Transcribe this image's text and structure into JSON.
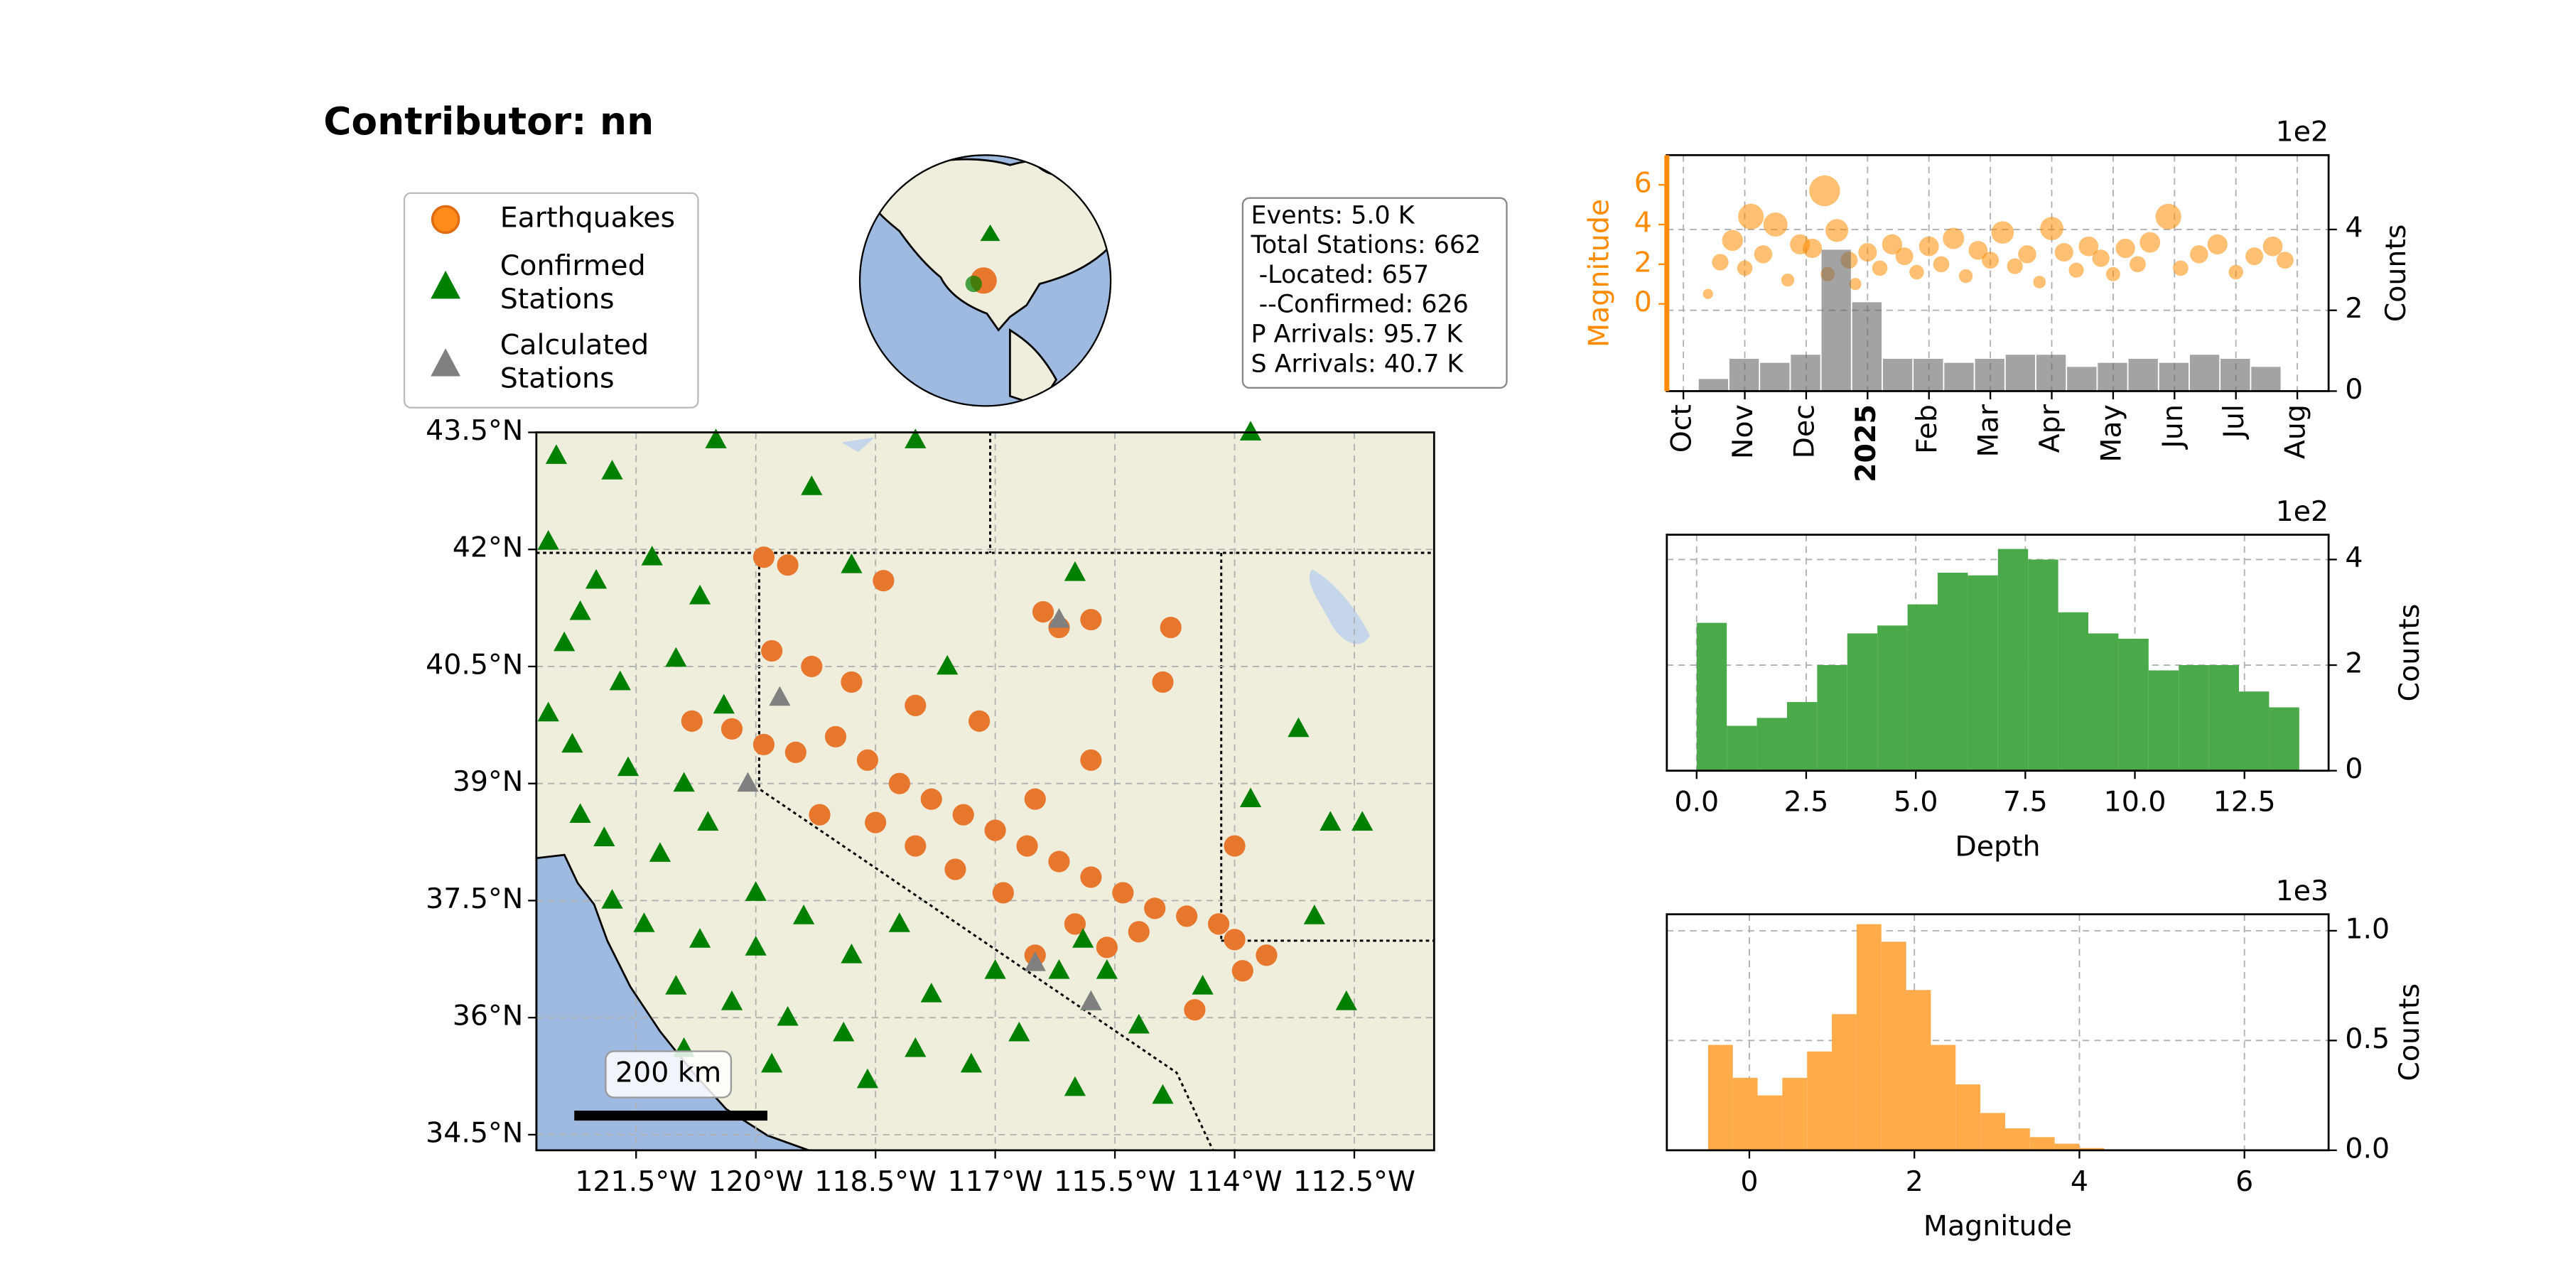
{
  "title": "Contributor: nn",
  "info_box": [
    "Events: 5.0 K",
    "Total Stations: 662",
    " -Located: 657",
    " --Confirmed: 626",
    "P Arrivals: 95.7 K",
    "S Arrivals: 40.7 K"
  ],
  "chart_data": [
    {
      "type": "map",
      "xlim": [
        -122.75,
        -111.5
      ],
      "ylim": [
        34.3,
        43.5
      ],
      "xticks": [
        {
          "value": -121.5,
          "label": "121.5°W"
        },
        {
          "value": -120,
          "label": "120°W"
        },
        {
          "value": -118.5,
          "label": "118.5°W"
        },
        {
          "value": -117,
          "label": "117°W"
        },
        {
          "value": -115.5,
          "label": "115.5°W"
        },
        {
          "value": -114,
          "label": "114°W"
        },
        {
          "value": -112.5,
          "label": "112.5°W"
        }
      ],
      "yticks": [
        {
          "value": 43.5,
          "label": "43.5°N"
        },
        {
          "value": 42,
          "label": "42°N"
        },
        {
          "value": 40.5,
          "label": "40.5°N"
        },
        {
          "value": 39,
          "label": "39°N"
        },
        {
          "value": 37.5,
          "label": "37.5°N"
        },
        {
          "value": 36,
          "label": "36°N"
        },
        {
          "value": 34.5,
          "label": "34.5°N"
        }
      ],
      "grid": true,
      "scale_bar_label": "200 km",
      "series": [
        {
          "name": "Earthquakes",
          "color": "#e8772e",
          "marker": "circle",
          "x": [
            -119.9,
            -119.6,
            -118.4,
            -119.8,
            -119.3,
            -118.8,
            -120.8,
            -120.3,
            -119.9,
            -119.5,
            -119.0,
            -118.6,
            -118.2,
            -117.8,
            -117.4,
            -117.0,
            -116.6,
            -116.2,
            -115.8,
            -115.4,
            -115.0,
            -114.6,
            -114.2,
            -116.9,
            -117.5,
            -118.0,
            -116.0,
            -115.6,
            -115.2,
            -116.5,
            -114.0,
            -114.0,
            -113.6,
            -113.9,
            -114.5,
            -116.2,
            -115.8,
            -116.4,
            -114.8,
            -114.9,
            -116.5,
            -115.8,
            -117.2,
            -118.0,
            -119.2,
            -118.5
          ],
          "values": [
            41.9,
            41.8,
            41.6,
            40.7,
            40.5,
            40.3,
            39.8,
            39.7,
            39.5,
            39.4,
            39.6,
            39.3,
            39.0,
            38.8,
            38.6,
            38.4,
            38.2,
            38.0,
            37.8,
            37.6,
            37.4,
            37.3,
            37.2,
            37.6,
            37.9,
            38.2,
            37.2,
            36.9,
            37.1,
            36.8,
            37.0,
            38.2,
            36.8,
            36.6,
            36.1,
            41.0,
            41.1,
            41.2,
            41.0,
            40.3,
            38.8,
            39.3,
            39.8,
            40.0,
            38.6,
            38.5
          ]
        },
        {
          "name": "Confirmed Stations",
          "color": "#008000",
          "marker": "triangle",
          "x": [
            -122.5,
            -121.8,
            -120.5,
            -119.3,
            -118.0,
            -113.8,
            -122.6,
            -122.0,
            -121.3,
            -120.7,
            -122.4,
            -121.7,
            -121.0,
            -120.4,
            -122.3,
            -121.6,
            -120.9,
            -122.2,
            -121.9,
            -121.2,
            -120.6,
            -121.8,
            -121.4,
            -120.7,
            -120.0,
            -119.4,
            -121.0,
            -120.3,
            -119.6,
            -118.9,
            -119.8,
            -118.6,
            -118.0,
            -117.3,
            -116.7,
            -116.0,
            -117.8,
            -117.0,
            -116.2,
            -115.9,
            -115.6,
            -115.2,
            -114.9,
            -118.8,
            -118.2,
            -117.6,
            -116.0,
            -113.2,
            -112.8,
            -113.0,
            -112.6,
            -112.4,
            -113.8,
            -114.4,
            -115.8,
            -120.0,
            -120.9,
            -122.6,
            -122.2,
            -118.8
          ],
          "values": [
            43.2,
            43.0,
            43.4,
            42.8,
            43.4,
            43.5,
            42.1,
            41.6,
            41.9,
            41.4,
            40.8,
            40.3,
            40.6,
            40.0,
            39.5,
            39.2,
            39.0,
            38.6,
            38.3,
            38.1,
            38.5,
            37.5,
            37.2,
            37.0,
            37.6,
            37.3,
            36.4,
            36.2,
            36.0,
            35.8,
            35.4,
            35.2,
            35.6,
            35.4,
            35.8,
            35.1,
            36.3,
            36.6,
            36.6,
            37.0,
            36.6,
            35.9,
            35.0,
            36.8,
            37.2,
            40.5,
            41.7,
            39.7,
            38.5,
            37.3,
            36.2,
            38.5,
            38.8,
            36.4,
            36.2,
            36.9,
            35.6,
            39.9,
            41.2,
            41.8
          ]
        },
        {
          "name": "Calculated Stations",
          "color": "#808080",
          "marker": "triangle",
          "x": [
            -116.2,
            -120.1,
            -116.5,
            -115.8,
            -119.7
          ],
          "values": [
            41.1,
            39.0,
            36.7,
            36.2,
            40.1
          ]
        }
      ]
    },
    {
      "type": "timeline",
      "xlim": [
        -0.27,
        10.51
      ],
      "xticks": [
        {
          "value": 0,
          "label": "Oct"
        },
        {
          "value": 1,
          "label": "Nov"
        },
        {
          "value": 2,
          "label": "Dec"
        },
        {
          "value": 3,
          "label": "2025"
        },
        {
          "value": 4,
          "label": "Feb"
        },
        {
          "value": 5,
          "label": "Mar"
        },
        {
          "value": 6,
          "label": "Apr"
        },
        {
          "value": 7,
          "label": "May"
        },
        {
          "value": 8,
          "label": "Jun"
        },
        {
          "value": 9,
          "label": "Jul"
        },
        {
          "value": 10,
          "label": "Aug"
        }
      ],
      "ylabel": "Magnitude",
      "ylim": [
        -4.4,
        7.5
      ],
      "yticks": [
        0,
        2,
        4,
        6
      ],
      "y2label": "Counts",
      "y2lim": [
        0,
        5.84
      ],
      "y2ticks": [
        0,
        2,
        4
      ],
      "y2_offset": "1e2",
      "grid": true,
      "scatter": {
        "color": "#ff8c00",
        "x": [
          0.4,
          0.6,
          0.8,
          1.0,
          1.1,
          1.3,
          1.5,
          1.7,
          1.9,
          2.1,
          2.3,
          2.35,
          2.5,
          2.7,
          2.8,
          3.0,
          3.2,
          3.4,
          3.6,
          3.8,
          4.0,
          4.2,
          4.4,
          4.6,
          4.8,
          5.0,
          5.2,
          5.4,
          5.6,
          5.8,
          6.0,
          6.2,
          6.4,
          6.6,
          6.8,
          7.0,
          7.2,
          7.4,
          7.6,
          7.9,
          8.1,
          8.4,
          8.7,
          9.0,
          9.3,
          9.6,
          9.8
        ],
        "values": [
          0.5,
          2.1,
          3.2,
          1.8,
          4.4,
          2.5,
          4.0,
          1.2,
          3.0,
          2.8,
          5.7,
          1.5,
          3.7,
          2.2,
          1.0,
          2.6,
          1.8,
          3.0,
          2.4,
          1.6,
          2.9,
          2.0,
          3.3,
          1.4,
          2.7,
          2.2,
          3.6,
          1.9,
          2.5,
          1.1,
          3.8,
          2.6,
          1.7,
          2.9,
          2.3,
          1.5,
          2.8,
          2.0,
          3.1,
          4.4,
          1.8,
          2.5,
          3.0,
          1.6,
          2.4,
          2.9,
          2.2
        ]
      },
      "bars": {
        "color": "#666666",
        "axis": "y2",
        "bins": [
          0.25,
          0.75,
          1.25,
          1.75,
          2.25,
          2.75,
          3.25,
          3.75,
          4.25,
          4.75,
          5.25,
          5.75,
          6.25,
          6.75,
          7.25,
          7.75,
          8.25,
          8.75,
          9.25,
          9.75
        ],
        "values": [
          0.3,
          0.8,
          0.7,
          0.9,
          3.5,
          2.2,
          0.8,
          0.8,
          0.7,
          0.8,
          0.9,
          0.9,
          0.6,
          0.7,
          0.8,
          0.7,
          0.9,
          0.8,
          0.6
        ]
      }
    },
    {
      "type": "histogram",
      "color": "#4aaa4a",
      "xlabel": "Depth",
      "ylabel": "Counts",
      "y_offset": "1e2",
      "xlim": [
        -0.68,
        14.42
      ],
      "ylim": [
        0,
        4.47
      ],
      "xticks": [
        {
          "value": 0,
          "label": "0.0"
        },
        2.5,
        {
          "value": 5,
          "label": "5.0"
        },
        7.5,
        {
          "value": 10,
          "label": "10.0"
        },
        12.5
      ],
      "yticks": [
        0,
        2,
        4
      ],
      "grid": true,
      "bins": [
        0,
        0.6875,
        1.375,
        2.0625,
        2.75,
        3.4375,
        4.125,
        4.8125,
        5.5,
        6.1875,
        6.875,
        7.5625,
        8.25,
        8.9375,
        9.625,
        10.3125,
        11,
        11.6875,
        12.375,
        13.0625,
        13.75
      ],
      "values": [
        2.8,
        0.85,
        1.0,
        1.3,
        2.0,
        2.6,
        2.75,
        3.15,
        3.75,
        3.7,
        4.2,
        4.0,
        3.0,
        2.6,
        2.5,
        1.9,
        2.0,
        2.0,
        1.5,
        1.2
      ]
    },
    {
      "type": "histogram",
      "color": "#ffab4a",
      "xlabel": "Magnitude",
      "ylabel": "Counts",
      "y_offset": "1e3",
      "xlim": [
        -1.0,
        7.02
      ],
      "ylim": [
        0,
        1.075
      ],
      "xticks": [
        0,
        2,
        4,
        6
      ],
      "yticks": [
        {
          "value": 0,
          "label": "0.0"
        },
        0.5,
        {
          "value": 1,
          "label": "1.0"
        }
      ],
      "grid": true,
      "bins": [
        -0.5,
        -0.2,
        0.1,
        0.4,
        0.7,
        1.0,
        1.3,
        1.6,
        1.9,
        2.2,
        2.5,
        2.8,
        3.1,
        3.4,
        3.7,
        4.0,
        4.3
      ],
      "values": [
        0.48,
        0.33,
        0.25,
        0.33,
        0.45,
        0.62,
        1.03,
        0.95,
        0.73,
        0.48,
        0.3,
        0.17,
        0.1,
        0.06,
        0.03,
        0.01
      ]
    }
  ]
}
